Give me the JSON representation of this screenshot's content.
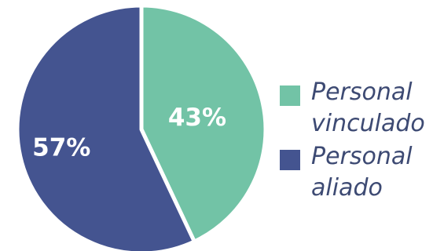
{
  "chart_data": {
    "type": "pie",
    "slices": [
      {
        "label": "Personal vinculado",
        "value": 43,
        "display": "43%",
        "color": "#72c3a6"
      },
      {
        "label": "Personal aliado",
        "value": 57,
        "display": "57%",
        "color": "#445490"
      }
    ],
    "legend_position": "right"
  },
  "colors": {
    "legend_text": "#3d4a73",
    "slice_border": "#ffffff"
  }
}
